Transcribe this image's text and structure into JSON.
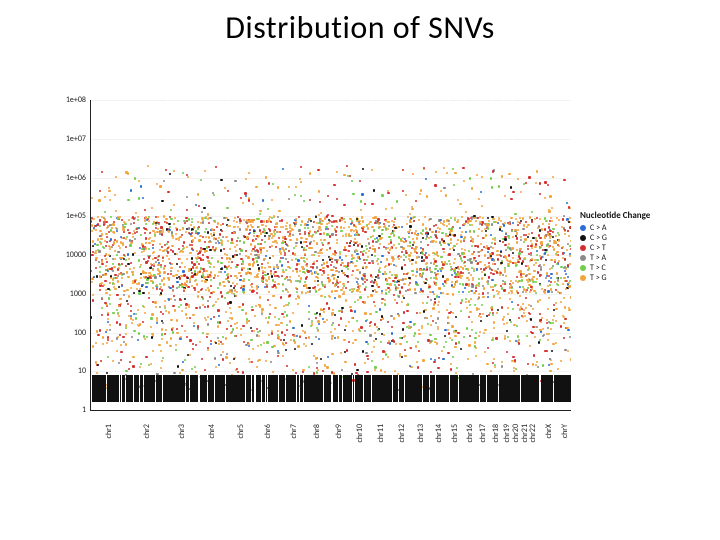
{
  "title": "Distribution of SNVs",
  "chart": {
    "type": "scatter",
    "scale": "log",
    "background_color": "#ffffff",
    "axis_color": "#222222",
    "title_fontsize": 32,
    "label_fontsize": 8,
    "marker_size": 2.2,
    "y": {
      "log_min": 0,
      "log_max": 8,
      "ticks": [
        {
          "log": 0,
          "label": "1"
        },
        {
          "log": 1,
          "label": "10"
        },
        {
          "log": 2,
          "label": "100"
        },
        {
          "log": 3,
          "label": "1000"
        },
        {
          "log": 4,
          "label": "10000"
        },
        {
          "log": 5,
          "label": "1e+05"
        },
        {
          "log": 6,
          "label": "1e+06"
        },
        {
          "log": 7,
          "label": "1e+07"
        },
        {
          "log": 8,
          "label": "1e+08"
        }
      ]
    },
    "x_categories": [
      "chr1",
      "chr2",
      "chr3",
      "chr4",
      "chr5",
      "chr6",
      "chr7",
      "chr8",
      "chr9",
      "chr10",
      "chr11",
      "chr12",
      "chr13",
      "chr14",
      "chr15",
      "chr16",
      "chr17",
      "chr18",
      "chr19",
      "chr20",
      "chr21",
      "chr22",
      "chrX",
      "chrY"
    ],
    "x_weights": [
      249,
      242,
      198,
      190,
      182,
      171,
      159,
      145,
      138,
      134,
      135,
      134,
      115,
      107,
      103,
      90,
      83,
      80,
      59,
      64,
      48,
      51,
      155,
      59
    ],
    "legend": {
      "title": "Nucleotide Change",
      "items": [
        {
          "label": "C > A",
          "color": "#2a6fd6"
        },
        {
          "label": "C > G",
          "color": "#111111"
        },
        {
          "label": "C > T",
          "color": "#d62f2f"
        },
        {
          "label": "T > A",
          "color": "#8a8a8a"
        },
        {
          "label": "T > C",
          "color": "#6fcf4a"
        },
        {
          "label": "T > G",
          "color": "#f2a53c"
        }
      ]
    },
    "series_colors": [
      "#2a6fd6",
      "#111111",
      "#d62f2f",
      "#8a8a8a",
      "#6fcf4a",
      "#f2a53c"
    ],
    "density_bands": [
      {
        "log_from": 3.0,
        "log_to": 5.0,
        "points_per_chr": 110
      },
      {
        "log_from": 1.7,
        "log_to": 3.0,
        "points_per_chr": 30
      },
      {
        "log_from": 5.0,
        "log_to": 6.3,
        "points_per_chr": 8
      },
      {
        "log_from": 0.5,
        "log_to": 1.7,
        "points_per_chr": 14
      }
    ],
    "dark_baseline": {
      "log_from": 0.2,
      "log_to": 0.9,
      "bars_per_chr": 40
    },
    "rand_seed": 20240073
  }
}
